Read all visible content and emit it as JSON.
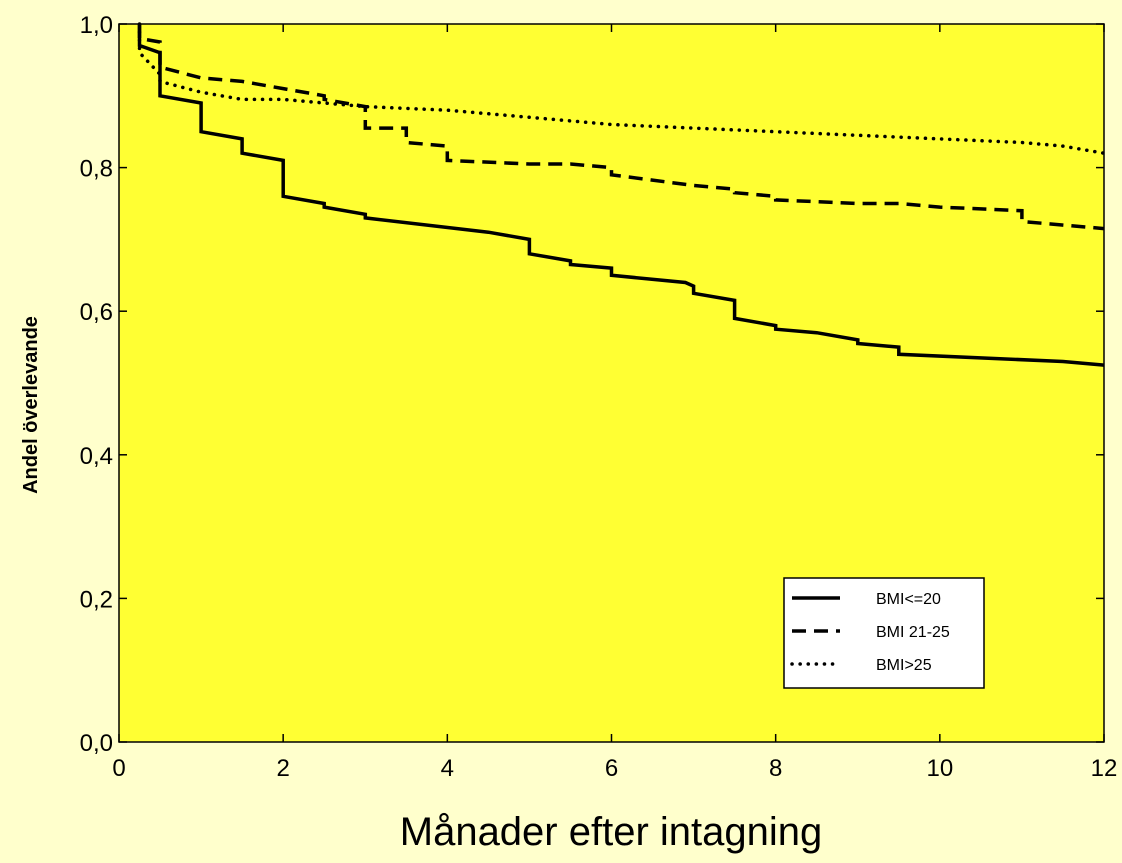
{
  "colors": {
    "page_background": "#ffffcc",
    "plot_background": "#ffff33",
    "line": "#000000"
  },
  "chart_data": {
    "type": "line",
    "title": "",
    "xlabel": "Månader efter intagning",
    "ylabel": "Andel överlevande",
    "xlim": [
      0,
      12
    ],
    "ylim": [
      0,
      1
    ],
    "x_ticks": [
      0,
      2,
      4,
      6,
      8,
      10,
      12
    ],
    "x_tick_labels": [
      "0",
      "2",
      "4",
      "6",
      "8",
      "10",
      "12"
    ],
    "y_ticks": [
      0,
      0.2,
      0.4,
      0.6,
      0.8,
      1.0
    ],
    "y_tick_labels": [
      "0,0",
      "0,2",
      "0,4",
      "0,6",
      "0,8",
      "1,0"
    ],
    "grid": false,
    "legend_position": "bottom-right",
    "step": true,
    "series": [
      {
        "name": "BMI<=20",
        "style": "solid",
        "points": [
          [
            0.25,
            1.0
          ],
          [
            0.25,
            0.97
          ],
          [
            0.5,
            0.96
          ],
          [
            0.5,
            0.9
          ],
          [
            1.0,
            0.89
          ],
          [
            1.0,
            0.85
          ],
          [
            1.5,
            0.84
          ],
          [
            1.5,
            0.82
          ],
          [
            2.0,
            0.81
          ],
          [
            2.0,
            0.76
          ],
          [
            2.5,
            0.75
          ],
          [
            2.5,
            0.745
          ],
          [
            3.0,
            0.735
          ],
          [
            3.0,
            0.73
          ],
          [
            4.5,
            0.71
          ],
          [
            5.0,
            0.7
          ],
          [
            5.0,
            0.68
          ],
          [
            5.5,
            0.67
          ],
          [
            5.5,
            0.665
          ],
          [
            6.0,
            0.66
          ],
          [
            6.0,
            0.65
          ],
          [
            6.9,
            0.64
          ],
          [
            7.0,
            0.635
          ],
          [
            7.0,
            0.625
          ],
          [
            7.5,
            0.615
          ],
          [
            7.5,
            0.59
          ],
          [
            8.0,
            0.58
          ],
          [
            8.0,
            0.575
          ],
          [
            8.5,
            0.57
          ],
          [
            9.0,
            0.56
          ],
          [
            9.0,
            0.555
          ],
          [
            9.5,
            0.55
          ],
          [
            9.5,
            0.54
          ],
          [
            11.5,
            0.53
          ],
          [
            12.0,
            0.525
          ]
        ]
      },
      {
        "name": "BMI 21-25",
        "style": "dashed",
        "points": [
          [
            0.25,
            1.0
          ],
          [
            0.25,
            0.98
          ],
          [
            0.5,
            0.975
          ],
          [
            0.5,
            0.94
          ],
          [
            1.0,
            0.925
          ],
          [
            1.5,
            0.92
          ],
          [
            2.0,
            0.91
          ],
          [
            2.5,
            0.9
          ],
          [
            2.5,
            0.895
          ],
          [
            3.0,
            0.885
          ],
          [
            3.0,
            0.855
          ],
          [
            3.5,
            0.855
          ],
          [
            3.5,
            0.835
          ],
          [
            4.0,
            0.83
          ],
          [
            4.0,
            0.81
          ],
          [
            5.0,
            0.805
          ],
          [
            5.5,
            0.805
          ],
          [
            6.0,
            0.8
          ],
          [
            6.0,
            0.79
          ],
          [
            7.0,
            0.775
          ],
          [
            7.5,
            0.77
          ],
          [
            7.5,
            0.765
          ],
          [
            8.0,
            0.76
          ],
          [
            8.0,
            0.755
          ],
          [
            9.0,
            0.75
          ],
          [
            9.5,
            0.75
          ],
          [
            10.0,
            0.745
          ],
          [
            11.0,
            0.74
          ],
          [
            11.0,
            0.725
          ],
          [
            12.0,
            0.715
          ]
        ]
      },
      {
        "name": "BMI>25",
        "style": "dotted",
        "points": [
          [
            0.25,
            1.0
          ],
          [
            0.25,
            0.96
          ],
          [
            0.5,
            0.93
          ],
          [
            0.5,
            0.92
          ],
          [
            1.0,
            0.905
          ],
          [
            1.5,
            0.895
          ],
          [
            2.0,
            0.895
          ],
          [
            2.5,
            0.89
          ],
          [
            3.0,
            0.885
          ],
          [
            4.0,
            0.88
          ],
          [
            5.0,
            0.87
          ],
          [
            6.0,
            0.86
          ],
          [
            7.0,
            0.855
          ],
          [
            8.0,
            0.85
          ],
          [
            9.0,
            0.845
          ],
          [
            10.0,
            0.84
          ],
          [
            11.0,
            0.835
          ],
          [
            11.5,
            0.83
          ],
          [
            12.0,
            0.82
          ]
        ]
      }
    ]
  }
}
